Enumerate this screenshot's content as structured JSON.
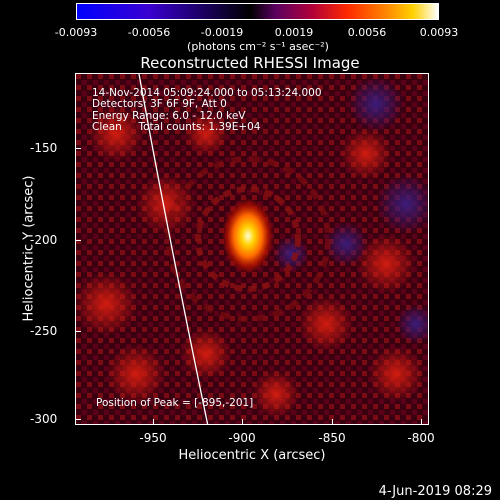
{
  "colorbar": {
    "ticks": [
      "-0.0093",
      "-0.0056",
      "-0.0019",
      "0.0019",
      "0.0056",
      "0.0093"
    ],
    "unit": "(photons cm⁻² s⁻¹ asec⁻²)"
  },
  "title": "Reconstructed RHESSI Image",
  "annotations": {
    "time": "14-Nov-2014 05:09:24.000 to 05:13:24.000",
    "detectors": "Detectors: 3F 6F 9F, Att 0",
    "energy": "Energy Range: 6.0 - 12.0 keV",
    "clean": "Clean     Total counts: 1.39E+04",
    "peak": "Position of Peak = [-895,-201]"
  },
  "axes": {
    "xlabel": "Heliocentric X (arcsec)",
    "ylabel": "Heliocentric Y (arcsec)",
    "xticks": [
      "-950",
      "-900",
      "-850",
      "-800"
    ],
    "yticks": [
      "-150",
      "-200",
      "-250",
      "-300"
    ]
  },
  "footer": {
    "date": "4-Jun-2019 08:29"
  }
}
